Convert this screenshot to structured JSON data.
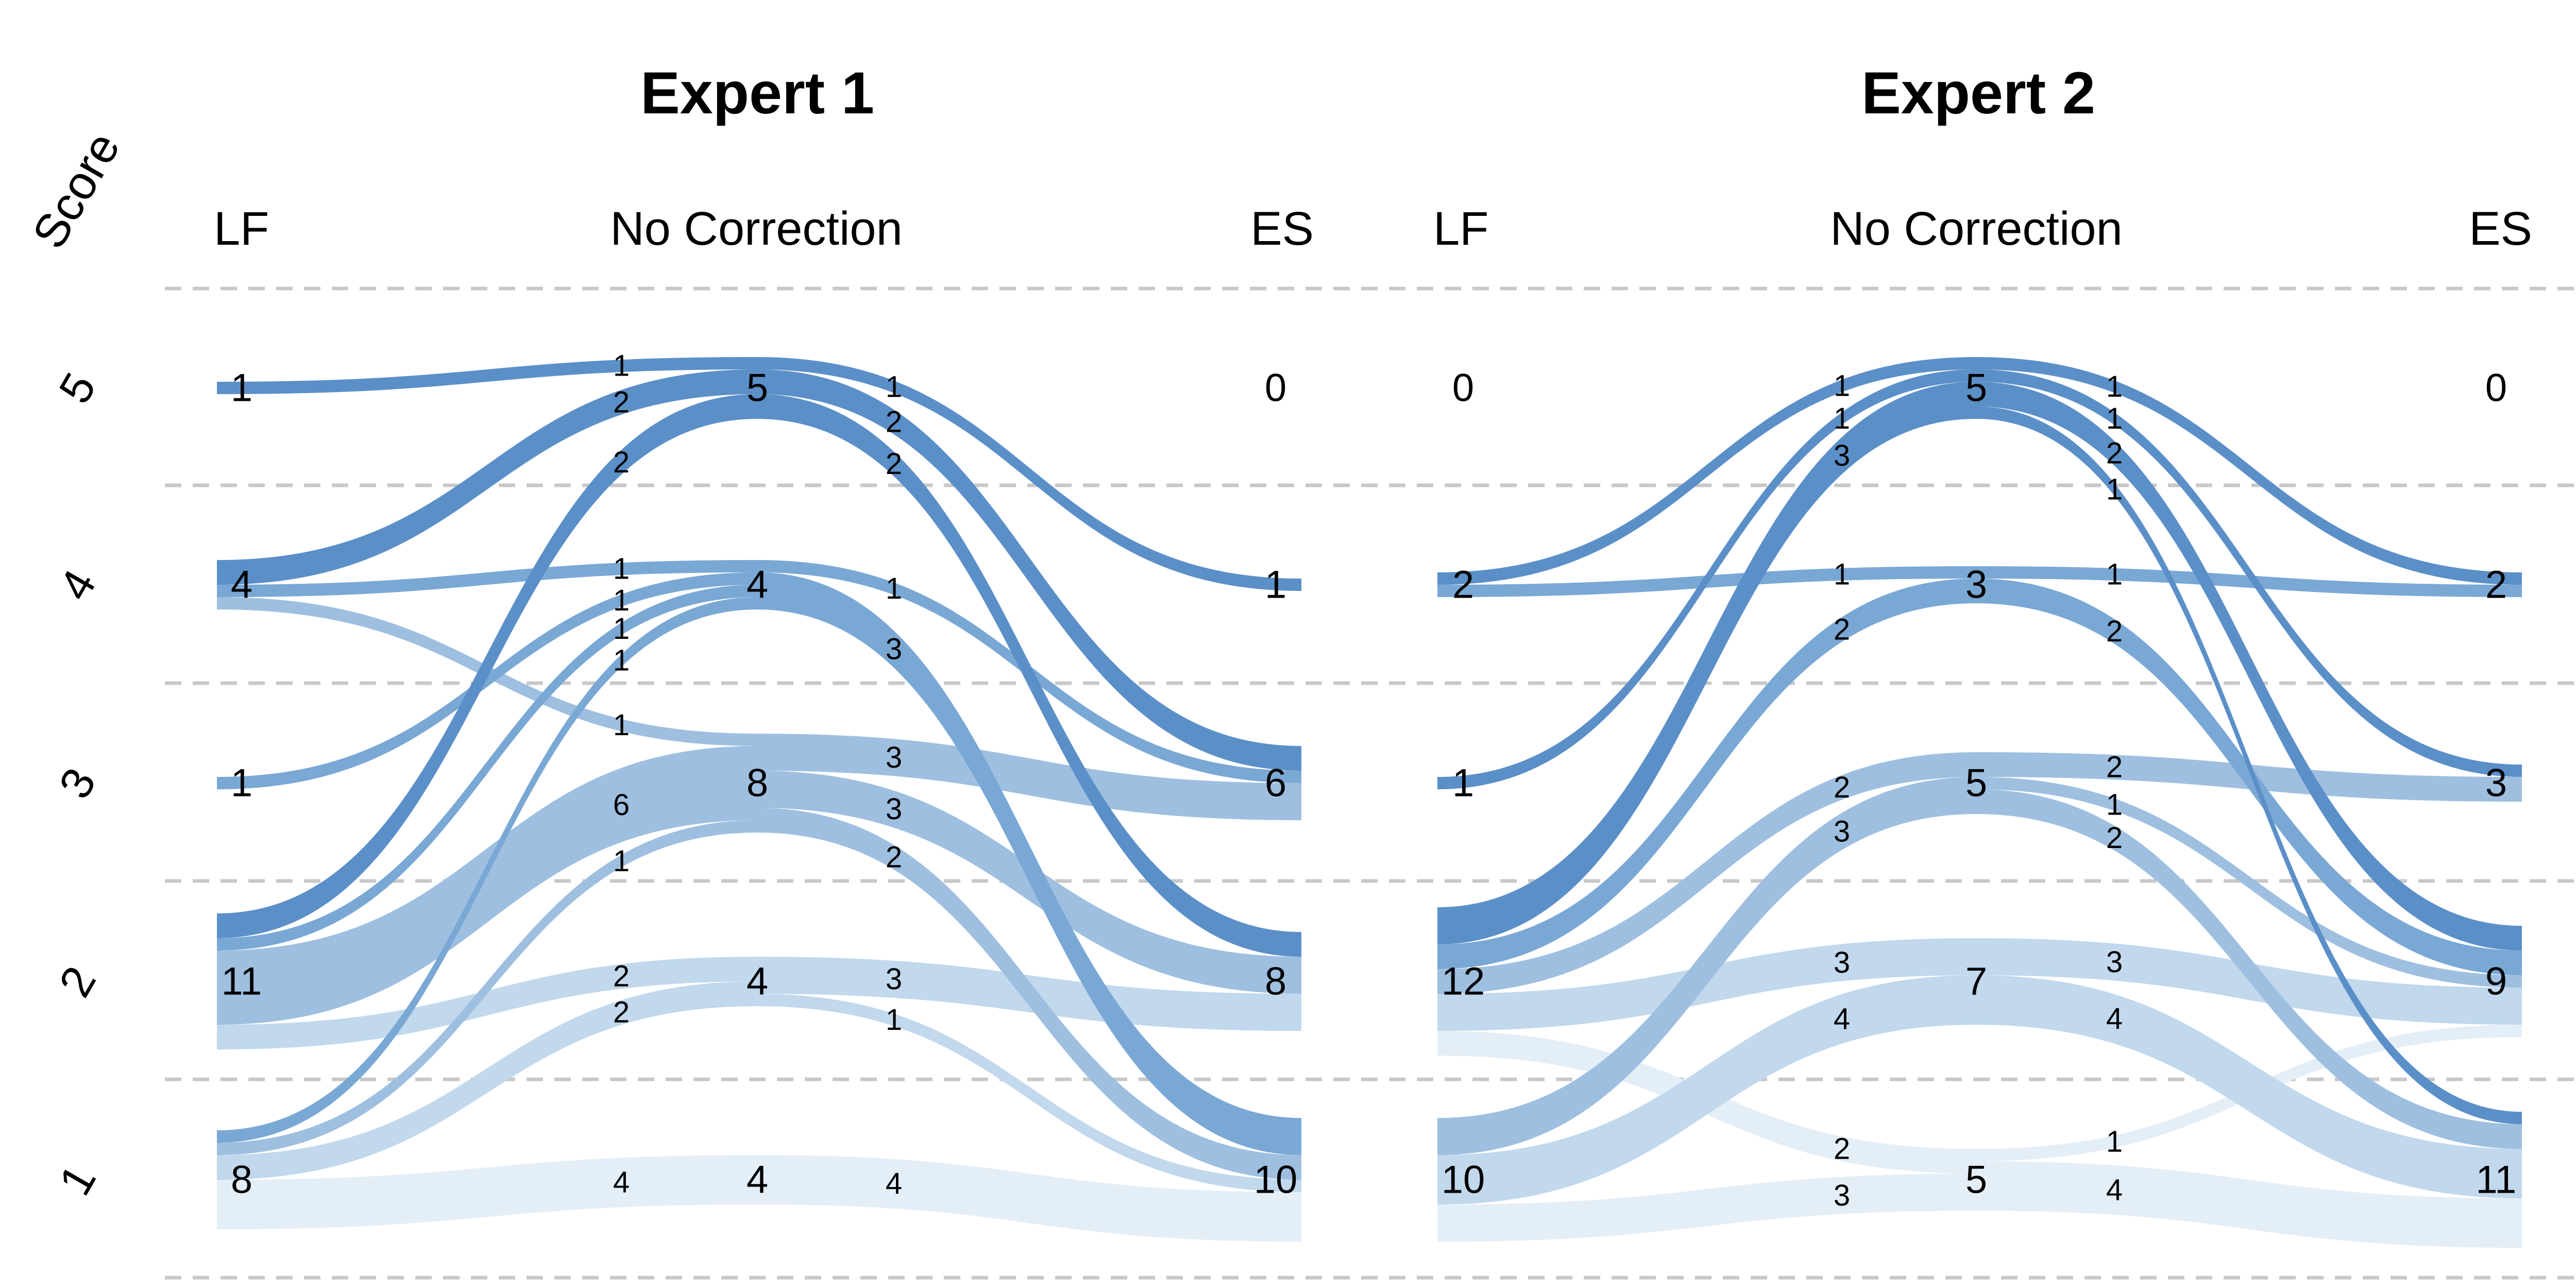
{
  "score_label": "Score",
  "scores": [
    "5",
    "4",
    "3",
    "2",
    "1"
  ],
  "chart_data": {
    "type": "alluvial",
    "colors": {
      "5": "#5b8fc8",
      "4": "#7aa8d5",
      "3": "#9ebfe0",
      "2": "#c1d8ed",
      "1": "#e4eef7"
    },
    "experts": [
      {
        "title": "Expert 1",
        "columns": [
          "LF",
          "No Correction",
          "ES"
        ],
        "totals": {
          "LF": {
            "5": 1,
            "4": 4,
            "3": 1,
            "2": 11,
            "1": 8
          },
          "NC": {
            "5": 5,
            "4": 4,
            "3": 8,
            "2": 4,
            "1": 4
          },
          "ES": {
            "5": 0,
            "4": 1,
            "3": 6,
            "2": 8,
            "1": 10
          }
        },
        "left_flows": [
          {
            "from": 5,
            "to": 5,
            "count": 1
          },
          {
            "from": 4,
            "to": 5,
            "count": 2
          },
          {
            "from": 2,
            "to": 5,
            "count": 2
          },
          {
            "from": 4,
            "to": 4,
            "count": 1
          },
          {
            "from": 3,
            "to": 4,
            "count": 1
          },
          {
            "from": 2,
            "to": 4,
            "count": 1
          },
          {
            "from": 1,
            "to": 4,
            "count": 1
          },
          {
            "from": 4,
            "to": 3,
            "count": 1
          },
          {
            "from": 2,
            "to": 3,
            "count": 6
          },
          {
            "from": 1,
            "to": 3,
            "count": 1
          },
          {
            "from": 2,
            "to": 2,
            "count": 2
          },
          {
            "from": 1,
            "to": 2,
            "count": 2
          },
          {
            "from": 1,
            "to": 1,
            "count": 4
          }
        ],
        "right_flows": [
          {
            "from": 5,
            "to": 4,
            "count": 1
          },
          {
            "from": 5,
            "to": 3,
            "count": 2
          },
          {
            "from": 5,
            "to": 2,
            "count": 2
          },
          {
            "from": 4,
            "to": 3,
            "count": 1
          },
          {
            "from": 4,
            "to": 1,
            "count": 3
          },
          {
            "from": 3,
            "to": 3,
            "count": 3
          },
          {
            "from": 3,
            "to": 2,
            "count": 3
          },
          {
            "from": 3,
            "to": 1,
            "count": 2
          },
          {
            "from": 2,
            "to": 2,
            "count": 3
          },
          {
            "from": 2,
            "to": 1,
            "count": 1
          },
          {
            "from": 1,
            "to": 1,
            "count": 4
          }
        ]
      },
      {
        "title": "Expert 2",
        "columns": [
          "LF",
          "No Correction",
          "ES"
        ],
        "totals": {
          "LF": {
            "5": 0,
            "4": 2,
            "3": 1,
            "2": 12,
            "1": 10
          },
          "NC": {
            "5": 5,
            "4": 3,
            "3": 5,
            "2": 7,
            "1": 5
          },
          "ES": {
            "5": 0,
            "4": 2,
            "3": 3,
            "2": 9,
            "1": 11
          }
        },
        "left_flows": [
          {
            "from": 4,
            "to": 5,
            "count": 1
          },
          {
            "from": 3,
            "to": 5,
            "count": 1
          },
          {
            "from": 2,
            "to": 5,
            "count": 3
          },
          {
            "from": 4,
            "to": 4,
            "count": 1
          },
          {
            "from": 2,
            "to": 4,
            "count": 2
          },
          {
            "from": 2,
            "to": 3,
            "count": 2
          },
          {
            "from": 1,
            "to": 3,
            "count": 3
          },
          {
            "from": 2,
            "to": 2,
            "count": 3
          },
          {
            "from": 1,
            "to": 2,
            "count": 4
          },
          {
            "from": 2,
            "to": 1,
            "count": 2
          },
          {
            "from": 1,
            "to": 1,
            "count": 3
          }
        ],
        "right_flows": [
          {
            "from": 5,
            "to": 4,
            "count": 1
          },
          {
            "from": 5,
            "to": 3,
            "count": 1
          },
          {
            "from": 5,
            "to": 2,
            "count": 2
          },
          {
            "from": 5,
            "to": 1,
            "count": 1
          },
          {
            "from": 4,
            "to": 4,
            "count": 1
          },
          {
            "from": 4,
            "to": 2,
            "count": 2
          },
          {
            "from": 3,
            "to": 3,
            "count": 2
          },
          {
            "from": 3,
            "to": 2,
            "count": 1
          },
          {
            "from": 3,
            "to": 1,
            "count": 2
          },
          {
            "from": 2,
            "to": 2,
            "count": 3
          },
          {
            "from": 2,
            "to": 1,
            "count": 4
          },
          {
            "from": 1,
            "to": 2,
            "count": 1
          },
          {
            "from": 1,
            "to": 1,
            "count": 4
          }
        ]
      }
    ]
  }
}
